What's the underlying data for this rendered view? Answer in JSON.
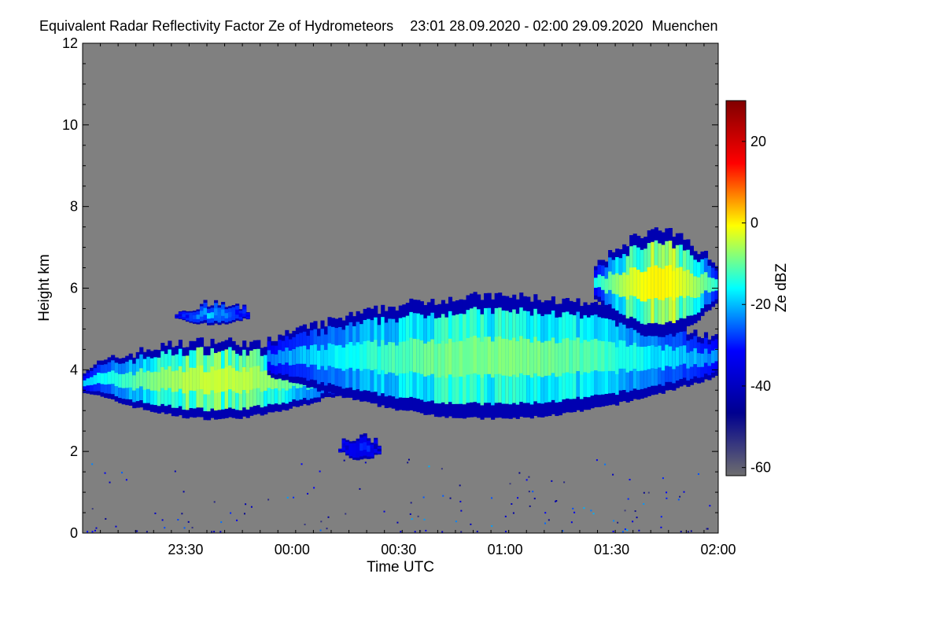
{
  "chart_data": {
    "type": "heatmap",
    "title": "Equivalent Radar Reflectivity Factor Ze of Hydrometeors",
    "time_range": "23:01 28.09.2020 - 02:00 29.09.2020",
    "location": "Muenchen",
    "xlabel": "Time UTC",
    "ylabel": "Height km",
    "colorbar_label": "Ze dBZ",
    "x_ticks": [
      "23:30",
      "00:00",
      "00:30",
      "01:00",
      "01:30",
      "02:00"
    ],
    "x_tick_minutes": [
      29,
      59,
      89,
      119,
      149,
      179
    ],
    "xlim_minutes": [
      0,
      179
    ],
    "y_ticks": [
      0,
      2,
      4,
      6,
      8,
      10,
      12
    ],
    "ylim": [
      0,
      12
    ],
    "colorbar_ticks": [
      -60,
      -40,
      -20,
      0,
      20
    ],
    "colorbar_range": [
      -62,
      30
    ],
    "no_data_color": "#808080",
    "colormap": [
      "#6e6e6e",
      "#00008f",
      "#0000ff",
      "#00ffff",
      "#ffff00",
      "#ff0000",
      "#800000"
    ],
    "features": [
      {
        "name": "low cloud layer",
        "time_min": [
          0,
          74
        ],
        "base_km": 2.8,
        "top_km": 4.7,
        "max_dbz": -5
      },
      {
        "name": "thin layer",
        "time_min": [
          26,
          47
        ],
        "base_km": 5.1,
        "top_km": 5.6,
        "max_dbz": -25
      },
      {
        "name": "mid-level cloud layer",
        "time_min": [
          52,
          179
        ],
        "base_km": 2.8,
        "top_km": 5.8,
        "max_dbz": -10
      },
      {
        "name": "upper cloud layer",
        "time_min": [
          144,
          179
        ],
        "base_km": 4.8,
        "top_km": 7.4,
        "max_dbz": 0
      },
      {
        "name": "small echo",
        "time_min": [
          72,
          84
        ],
        "base_km": 1.8,
        "top_km": 2.4,
        "max_dbz": -35
      }
    ]
  }
}
